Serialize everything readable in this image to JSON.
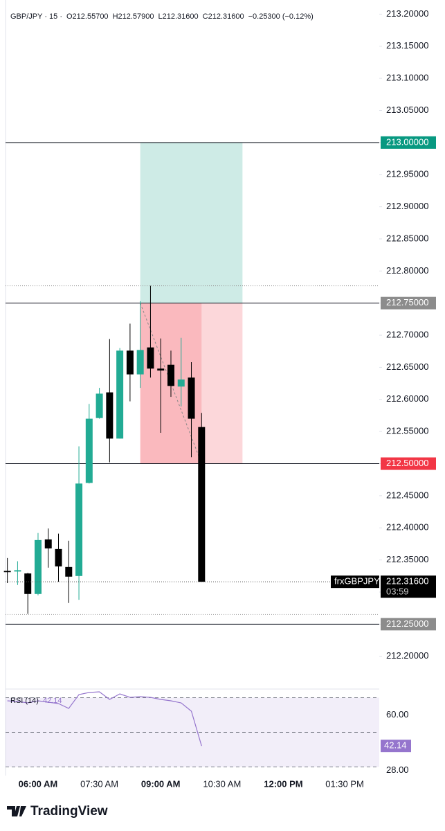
{
  "chart_data": [
    {
      "type": "candlestick",
      "title": "GBP/JPY · 15 ·",
      "ohlc_labels": [
        "O212.55700",
        "H212.57900",
        "L212.31600",
        "C212.31600"
      ],
      "change": "−0.25300 (−0.12%)",
      "x": [
        315,
        330,
        345,
        360,
        375,
        390,
        405,
        420,
        435,
        450,
        465,
        480,
        495,
        510,
        525,
        540,
        555,
        570,
        585,
        600
      ],
      "open": [
        212.333,
        212.332,
        212.329,
        212.297,
        212.382,
        212.367,
        212.339,
        212.325,
        212.47,
        212.571,
        212.611,
        212.539,
        212.676,
        212.639,
        212.681,
        212.648,
        212.654,
        212.62,
        212.634,
        212.557
      ],
      "high": [
        212.353,
        212.348,
        212.33,
        212.392,
        212.399,
        212.391,
        212.38,
        212.527,
        212.593,
        212.618,
        212.694,
        212.68,
        212.718,
        212.753,
        212.777,
        212.695,
        212.676,
        212.696,
        212.658,
        212.579
      ],
      "low": [
        212.314,
        212.311,
        212.266,
        212.295,
        212.338,
        212.316,
        212.283,
        212.288,
        212.469,
        212.57,
        212.502,
        212.539,
        212.597,
        212.618,
        212.634,
        212.548,
        212.604,
        212.589,
        212.51,
        212.316
      ],
      "close": [
        212.331,
        212.334,
        212.297,
        212.381,
        212.368,
        212.34,
        212.324,
        212.469,
        212.57,
        212.609,
        212.539,
        212.676,
        212.639,
        212.677,
        212.648,
        212.645,
        212.621,
        212.631,
        212.57,
        212.316
      ],
      "up_color": "#22ab94",
      "down_color": "#000000",
      "xlim": [
        312.3,
        860.7
      ],
      "xticks": [
        {
          "value": 360,
          "label": "06:00 AM"
        },
        {
          "value": 450,
          "label": "07:30 AM"
        },
        {
          "value": 540,
          "label": "09:00 AM"
        },
        {
          "value": 630,
          "label": "10:30 AM"
        },
        {
          "value": 720,
          "label": "12:00 PM"
        },
        {
          "value": 810,
          "label": "01:30 PM"
        }
      ],
      "ylim": [
        212.149,
        213.222
      ],
      "yticks": [
        {
          "value": 212.2,
          "label": "212.20000"
        },
        {
          "value": 212.25,
          "label": "212.25000"
        },
        {
          "value": 212.3,
          "label": "212.30000"
        },
        {
          "value": 212.35,
          "label": "212.35000"
        },
        {
          "value": 212.4,
          "label": "212.40000"
        },
        {
          "value": 212.45,
          "label": "212.45000"
        },
        {
          "value": 212.5,
          "label": "212.50000"
        },
        {
          "value": 212.55,
          "label": "212.55000"
        },
        {
          "value": 212.6,
          "label": "212.60000"
        },
        {
          "value": 212.65,
          "label": "212.65000"
        },
        {
          "value": 212.7,
          "label": "212.70000"
        },
        {
          "value": 212.75,
          "label": "212.75000"
        },
        {
          "value": 212.8,
          "label": "212.80000"
        },
        {
          "value": 212.85,
          "label": "212.85000"
        },
        {
          "value": 212.9,
          "label": "212.90000"
        },
        {
          "value": 212.95,
          "label": "212.95000"
        },
        {
          "value": 213.0,
          "label": "213.00000"
        },
        {
          "value": 213.05,
          "label": "213.05000"
        },
        {
          "value": 213.1,
          "label": "213.10000"
        },
        {
          "value": 213.15,
          "label": "213.15000"
        },
        {
          "value": 213.2,
          "label": "213.20000"
        }
      ],
      "grid": false,
      "levels": [
        {
          "value": 213.0,
          "label": "213.00000",
          "color": "#089981"
        },
        {
          "value": 212.75,
          "label": "212.75000",
          "color": "#8c8c8c"
        },
        {
          "value": 212.5,
          "label": "212.50000",
          "color": "#f23645"
        },
        {
          "value": 212.25,
          "label": "212.25000",
          "color": "#8c8c8c"
        }
      ],
      "dotted_levels": [
        212.777,
        212.265
      ],
      "position": {
        "start": 510,
        "end": 660,
        "current": 600,
        "target": 213.0,
        "entry": 212.75,
        "stop": 212.5
      },
      "last_price": {
        "value": 212.316,
        "label": "212.31600",
        "countdown": "03:59",
        "symbol": "frxGBPJPY"
      }
    },
    {
      "type": "line",
      "title": "RSI (14)",
      "last_label": "42.14",
      "color": "#9575cd",
      "x": [
        315,
        330,
        345,
        360,
        375,
        390,
        405,
        420,
        435,
        450,
        465,
        480,
        495,
        510,
        525,
        540,
        555,
        570,
        585,
        600
      ],
      "values": [
        68.2,
        67.8,
        67.0,
        68.2,
        67.4,
        66.6,
        63.8,
        71.8,
        73.0,
        73.4,
        69.0,
        72.2,
        70.2,
        70.6,
        70.2,
        69.0,
        68.2,
        67.0,
        62.2,
        42.14
      ],
      "ylim": [
        25,
        75
      ],
      "yticks": [
        {
          "value": 60,
          "label": "60.00"
        },
        {
          "value": 28,
          "label": "28.00"
        }
      ],
      "levels": [
        70,
        50,
        30
      ]
    }
  ],
  "footer": {
    "brand": "TradingView"
  }
}
